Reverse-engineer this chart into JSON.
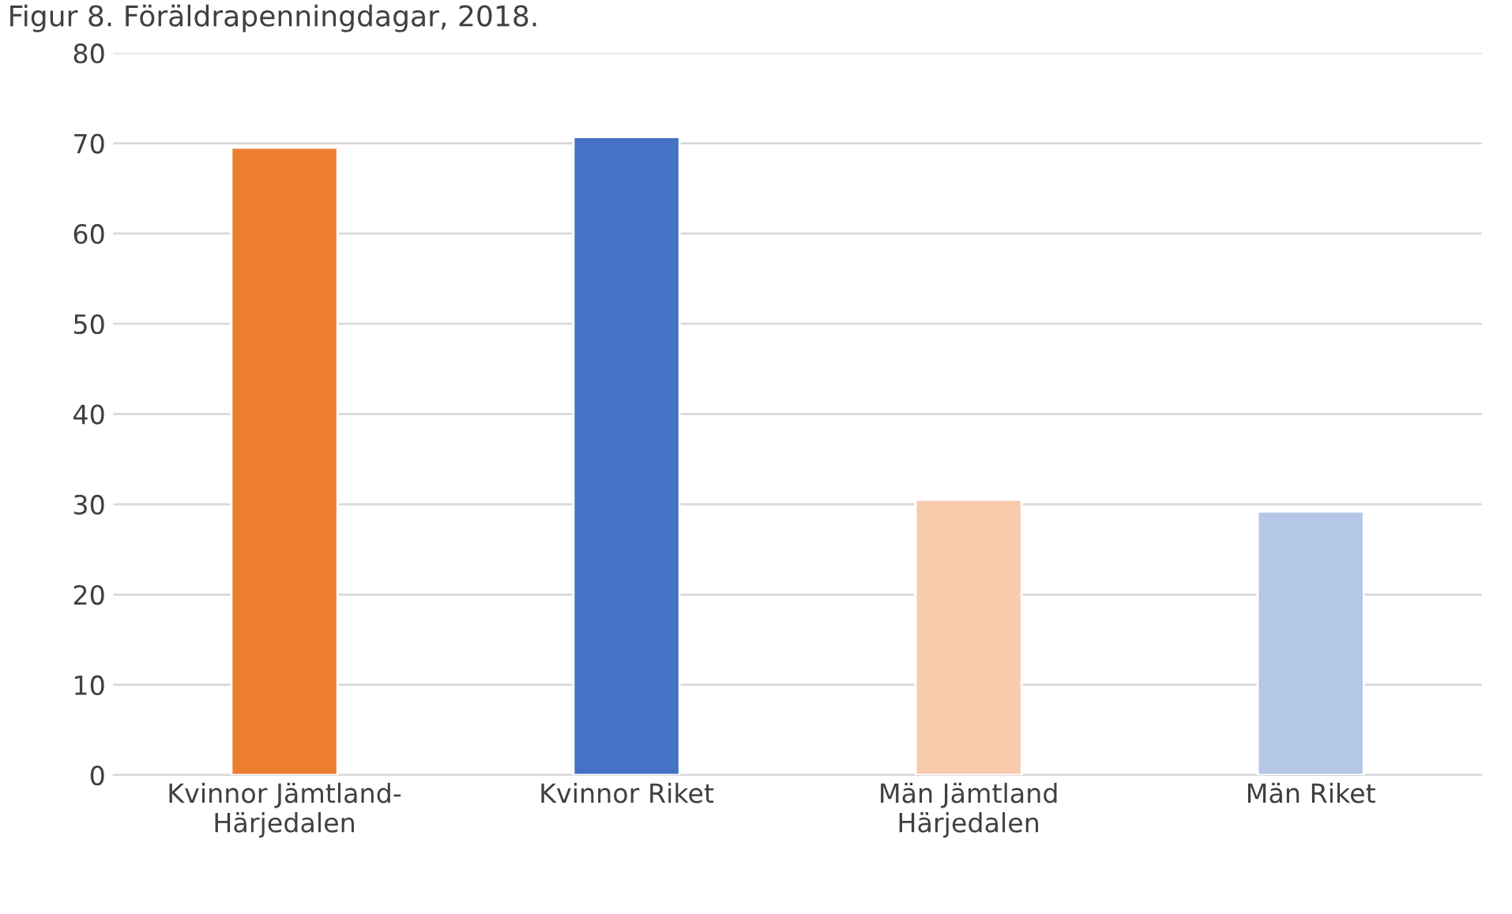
{
  "chart_data": {
    "type": "bar",
    "title": "Figur 8. Föräldrapenningdagar, 2018.",
    "categories": [
      "Kvinnor Jämtland-\nHärjedalen",
      "Kvinnor Riket",
      "Män Jämtland\nHärjedalen",
      "Män Riket"
    ],
    "values": [
      69.5,
      70.7,
      30.5,
      29.2
    ],
    "colors": [
      "#ed7d31",
      "#4472c4",
      "#f8cbad",
      "#b4c7e7"
    ],
    "ylim": [
      0,
      80
    ],
    "yticks": [
      0,
      10,
      20,
      30,
      40,
      50,
      60,
      70,
      80
    ],
    "grid": "y"
  }
}
